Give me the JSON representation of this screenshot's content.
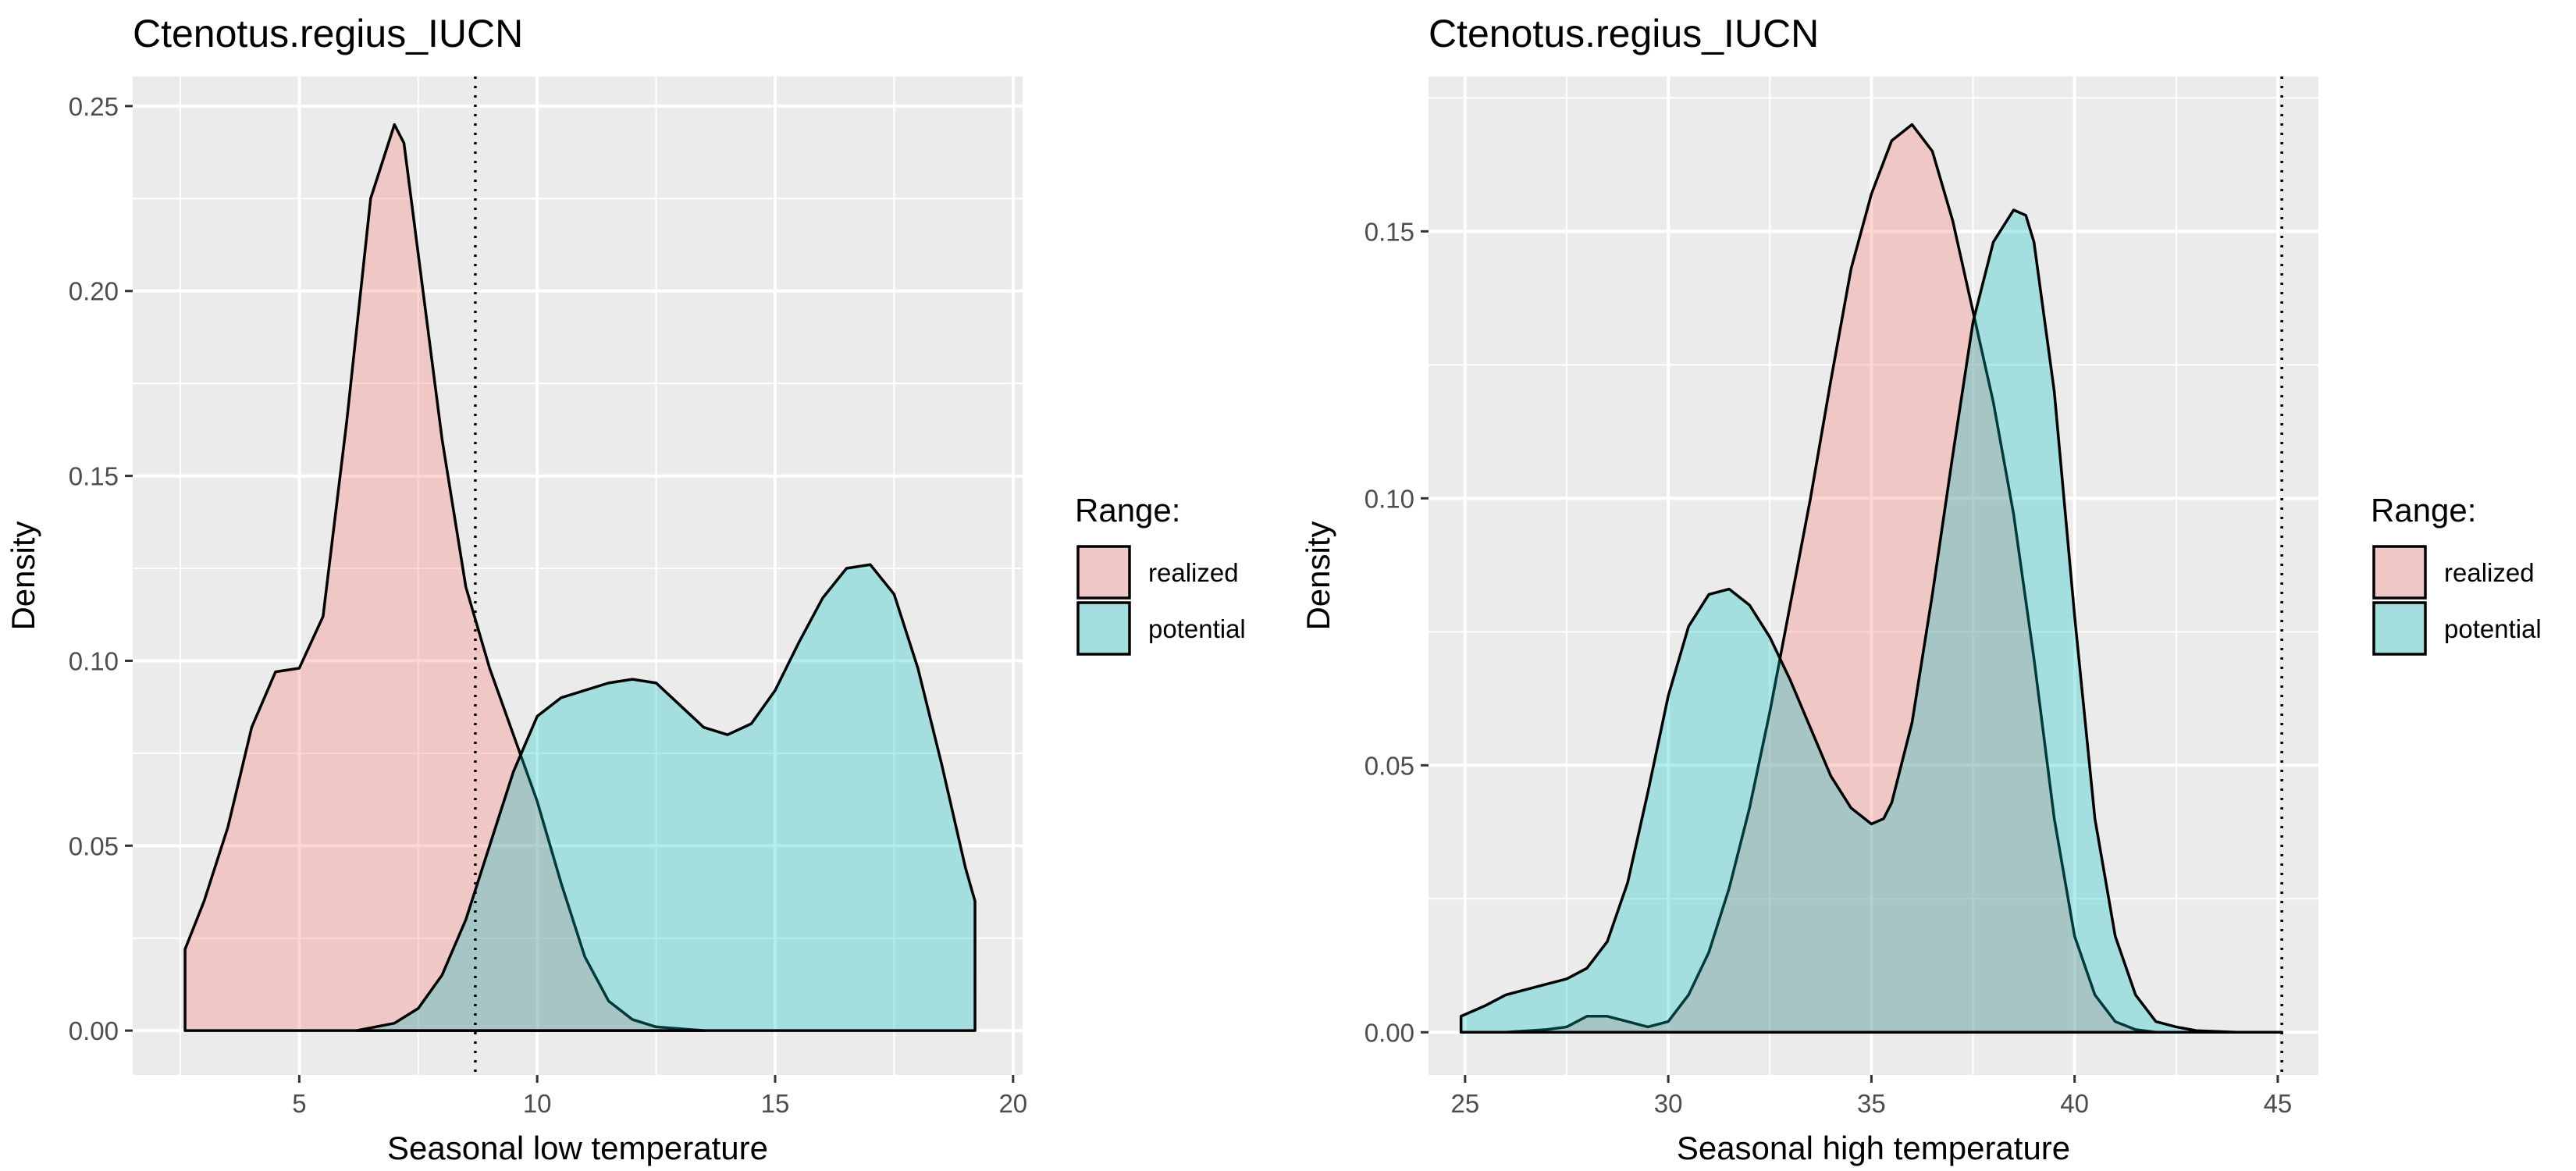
{
  "chart_data": [
    {
      "type": "area",
      "title": "Ctenotus.regius_IUCN",
      "xlabel": "Seasonal low temperature",
      "ylabel": "Density",
      "xlim": [
        1.5,
        20.2
      ],
      "ylim": [
        -0.012,
        0.258
      ],
      "xticks": [
        5,
        10,
        15,
        20
      ],
      "xtick_labels": [
        "5",
        "10",
        "15",
        "20"
      ],
      "yticks": [
        0,
        0.05,
        0.1,
        0.15,
        0.2,
        0.25
      ],
      "ytick_labels": [
        "0.00",
        "0.05",
        "0.10",
        "0.15",
        "0.20",
        "0.25"
      ],
      "vline": 8.7,
      "grid": true,
      "legend": {
        "title": "Range:",
        "position": "right"
      },
      "series": [
        {
          "name": "realized",
          "color": "#F8766D",
          "x": [
            2.6,
            3.0,
            3.5,
            4.0,
            4.5,
            5.0,
            5.5,
            6.0,
            6.5,
            7.0,
            7.2,
            7.5,
            8.0,
            8.5,
            9.0,
            9.5,
            10.0,
            10.5,
            11.0,
            11.5,
            12.0,
            12.5,
            13.0,
            13.5
          ],
          "y": [
            0.022,
            0.035,
            0.055,
            0.082,
            0.097,
            0.098,
            0.112,
            0.165,
            0.225,
            0.245,
            0.24,
            0.21,
            0.16,
            0.12,
            0.098,
            0.08,
            0.062,
            0.04,
            0.02,
            0.008,
            0.003,
            0.001,
            0.0005,
            0.0
          ]
        },
        {
          "name": "potential",
          "color": "#00BFC4",
          "x": [
            6.2,
            7.0,
            7.5,
            8.0,
            8.5,
            9.0,
            9.5,
            10.0,
            10.5,
            11.0,
            11.5,
            12.0,
            12.5,
            13.0,
            13.5,
            14.0,
            14.5,
            15.0,
            15.5,
            16.0,
            16.5,
            17.0,
            17.5,
            18.0,
            18.5,
            19.0,
            19.2
          ],
          "y": [
            0.0,
            0.002,
            0.006,
            0.015,
            0.03,
            0.05,
            0.07,
            0.085,
            0.09,
            0.092,
            0.094,
            0.095,
            0.094,
            0.088,
            0.082,
            0.08,
            0.083,
            0.092,
            0.105,
            0.117,
            0.125,
            0.126,
            0.118,
            0.098,
            0.072,
            0.044,
            0.035
          ]
        }
      ]
    },
    {
      "type": "area",
      "title": "Ctenotus.regius_IUCN",
      "xlabel": "Seasonal high temperature",
      "ylabel": "Density",
      "xlim": [
        24.1,
        46.0
      ],
      "ylim": [
        -0.008,
        0.179
      ],
      "xticks": [
        25,
        30,
        35,
        40,
        45
      ],
      "xtick_labels": [
        "25",
        "30",
        "35",
        "40",
        "45"
      ],
      "yticks": [
        0,
        0.05,
        0.1,
        0.15
      ],
      "ytick_labels": [
        "0.00",
        "0.05",
        "0.10",
        "0.15"
      ],
      "vline": 45.1,
      "grid": true,
      "legend": {
        "title": "Range:",
        "position": "right"
      },
      "series": [
        {
          "name": "realized",
          "color": "#F8766D",
          "x": [
            24.9,
            26.0,
            27.0,
            27.5,
            28.0,
            28.5,
            29.0,
            29.5,
            30.0,
            30.5,
            31.0,
            31.5,
            32.0,
            32.5,
            33.0,
            33.5,
            34.0,
            34.5,
            35.0,
            35.5,
            36.0,
            36.5,
            37.0,
            37.5,
            38.0,
            38.5,
            39.0,
            39.5,
            40.0,
            40.5,
            41.0,
            41.5,
            42.0,
            43.0,
            44.0,
            45.1
          ],
          "y": [
            0.0,
            0.0,
            0.0005,
            0.001,
            0.003,
            0.003,
            0.002,
            0.001,
            0.002,
            0.007,
            0.015,
            0.027,
            0.042,
            0.06,
            0.08,
            0.1,
            0.122,
            0.143,
            0.157,
            0.167,
            0.17,
            0.165,
            0.152,
            0.135,
            0.118,
            0.097,
            0.07,
            0.04,
            0.018,
            0.007,
            0.002,
            0.0005,
            0.0,
            0.0,
            0.0,
            0.0
          ]
        },
        {
          "name": "potential",
          "color": "#00BFC4",
          "x": [
            24.9,
            25.5,
            26.0,
            26.5,
            27.0,
            27.5,
            28.0,
            28.5,
            29.0,
            29.5,
            30.0,
            30.5,
            31.0,
            31.5,
            32.0,
            32.5,
            33.0,
            33.5,
            34.0,
            34.5,
            35.0,
            35.3,
            35.5,
            36.0,
            36.5,
            37.0,
            37.5,
            38.0,
            38.5,
            38.8,
            39.0,
            39.5,
            40.0,
            40.5,
            41.0,
            41.5,
            42.0,
            42.5,
            43.0,
            44.0,
            45.1
          ],
          "y": [
            0.003,
            0.005,
            0.007,
            0.008,
            0.009,
            0.01,
            0.012,
            0.017,
            0.028,
            0.045,
            0.063,
            0.076,
            0.082,
            0.083,
            0.08,
            0.074,
            0.066,
            0.057,
            0.048,
            0.042,
            0.039,
            0.04,
            0.043,
            0.058,
            0.082,
            0.108,
            0.133,
            0.148,
            0.154,
            0.153,
            0.148,
            0.12,
            0.078,
            0.04,
            0.018,
            0.007,
            0.002,
            0.001,
            0.0003,
            0.0,
            0.0
          ]
        }
      ]
    }
  ]
}
